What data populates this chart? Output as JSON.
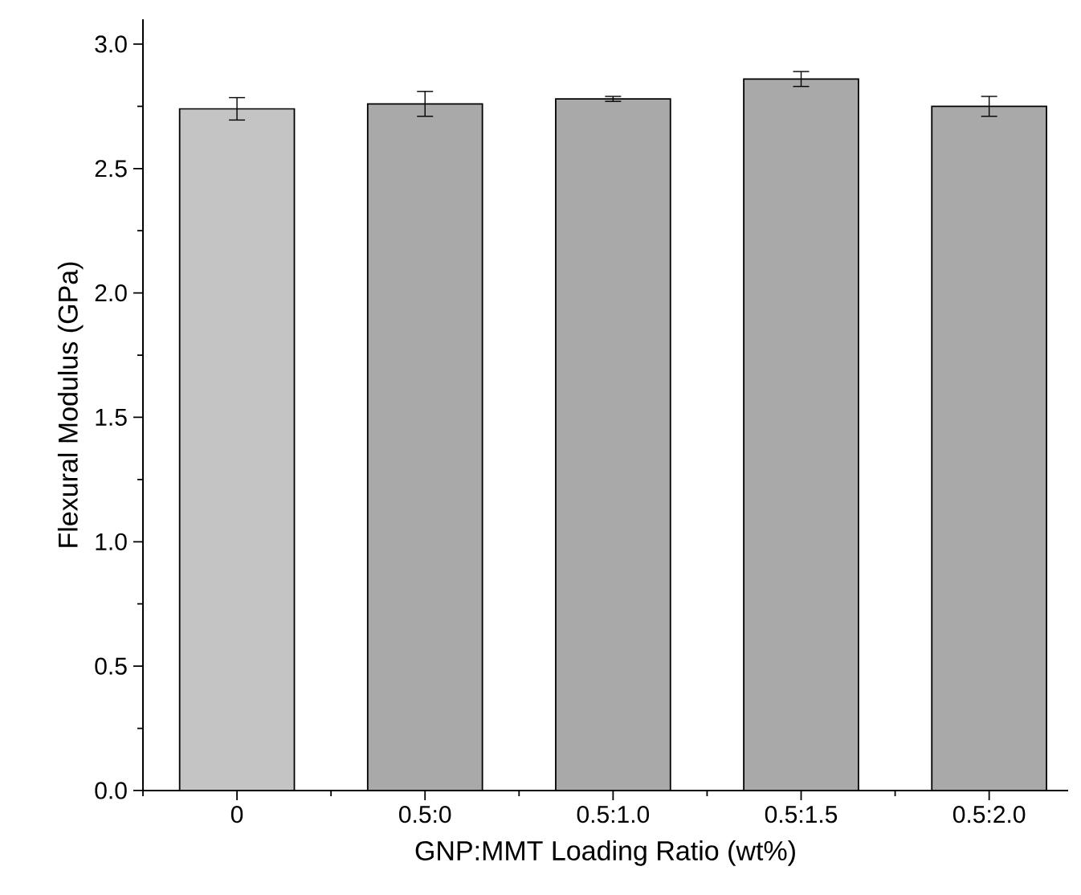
{
  "chart_data": {
    "type": "bar",
    "xlabel": "GNP:MMT Loading Ratio (wt%)",
    "ylabel": "Flexural Modulus (GPa)",
    "categories": [
      "0",
      "0.5:0",
      "0.5:1.0",
      "0.5:1.5",
      "0.5:2.0"
    ],
    "values": [
      2.74,
      2.76,
      2.78,
      2.86,
      2.75
    ],
    "errors": [
      0.045,
      0.05,
      0.01,
      0.03,
      0.04
    ],
    "colors": [
      "#c4c4c4",
      "#a9a9a9",
      "#a9a9a9",
      "#a9a9a9",
      "#a9a9a9"
    ],
    "ylim": [
      0,
      3.1
    ],
    "yticks": [
      {
        "value": 0,
        "label": "0.0"
      },
      {
        "value": 0.5,
        "label": "0.5"
      },
      {
        "value": 1,
        "label": "1.0"
      },
      {
        "value": 1.5,
        "label": "1.5"
      },
      {
        "value": 2,
        "label": "2.0"
      },
      {
        "value": 2.5,
        "label": "2.5"
      },
      {
        "value": 3,
        "label": "3.0"
      }
    ],
    "grid": false
  }
}
